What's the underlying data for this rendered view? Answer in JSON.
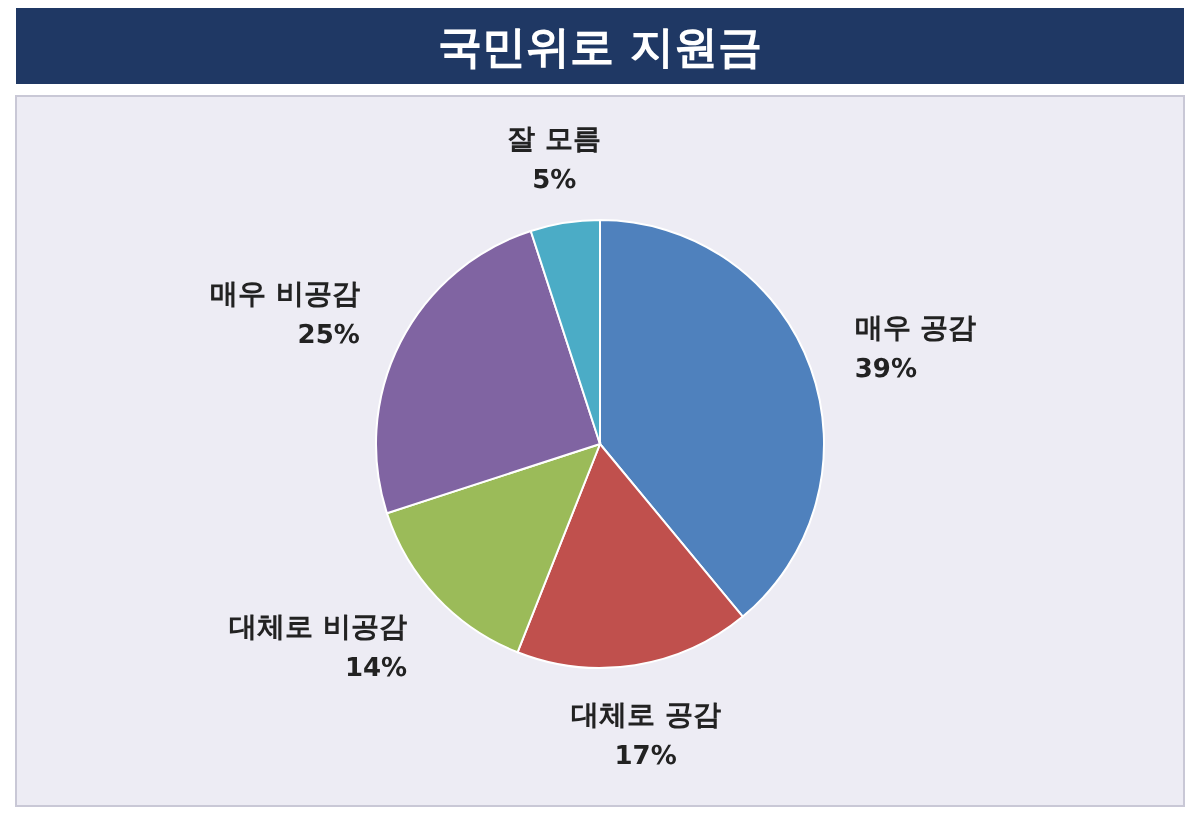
{
  "chart_data": {
    "type": "pie",
    "title": "국민위로 지원금",
    "categories": [
      "매우 공감",
      "대체로 공감",
      "대체로 비공감",
      "매우 비공감",
      "잘 모름"
    ],
    "values": [
      39,
      17,
      14,
      25,
      5
    ],
    "value_labels": [
      "39%",
      "17%",
      "14%",
      "25%",
      "5%"
    ],
    "colors": [
      "#4f81bd",
      "#c0504d",
      "#9bbb59",
      "#8064a2",
      "#4bacc6"
    ]
  }
}
